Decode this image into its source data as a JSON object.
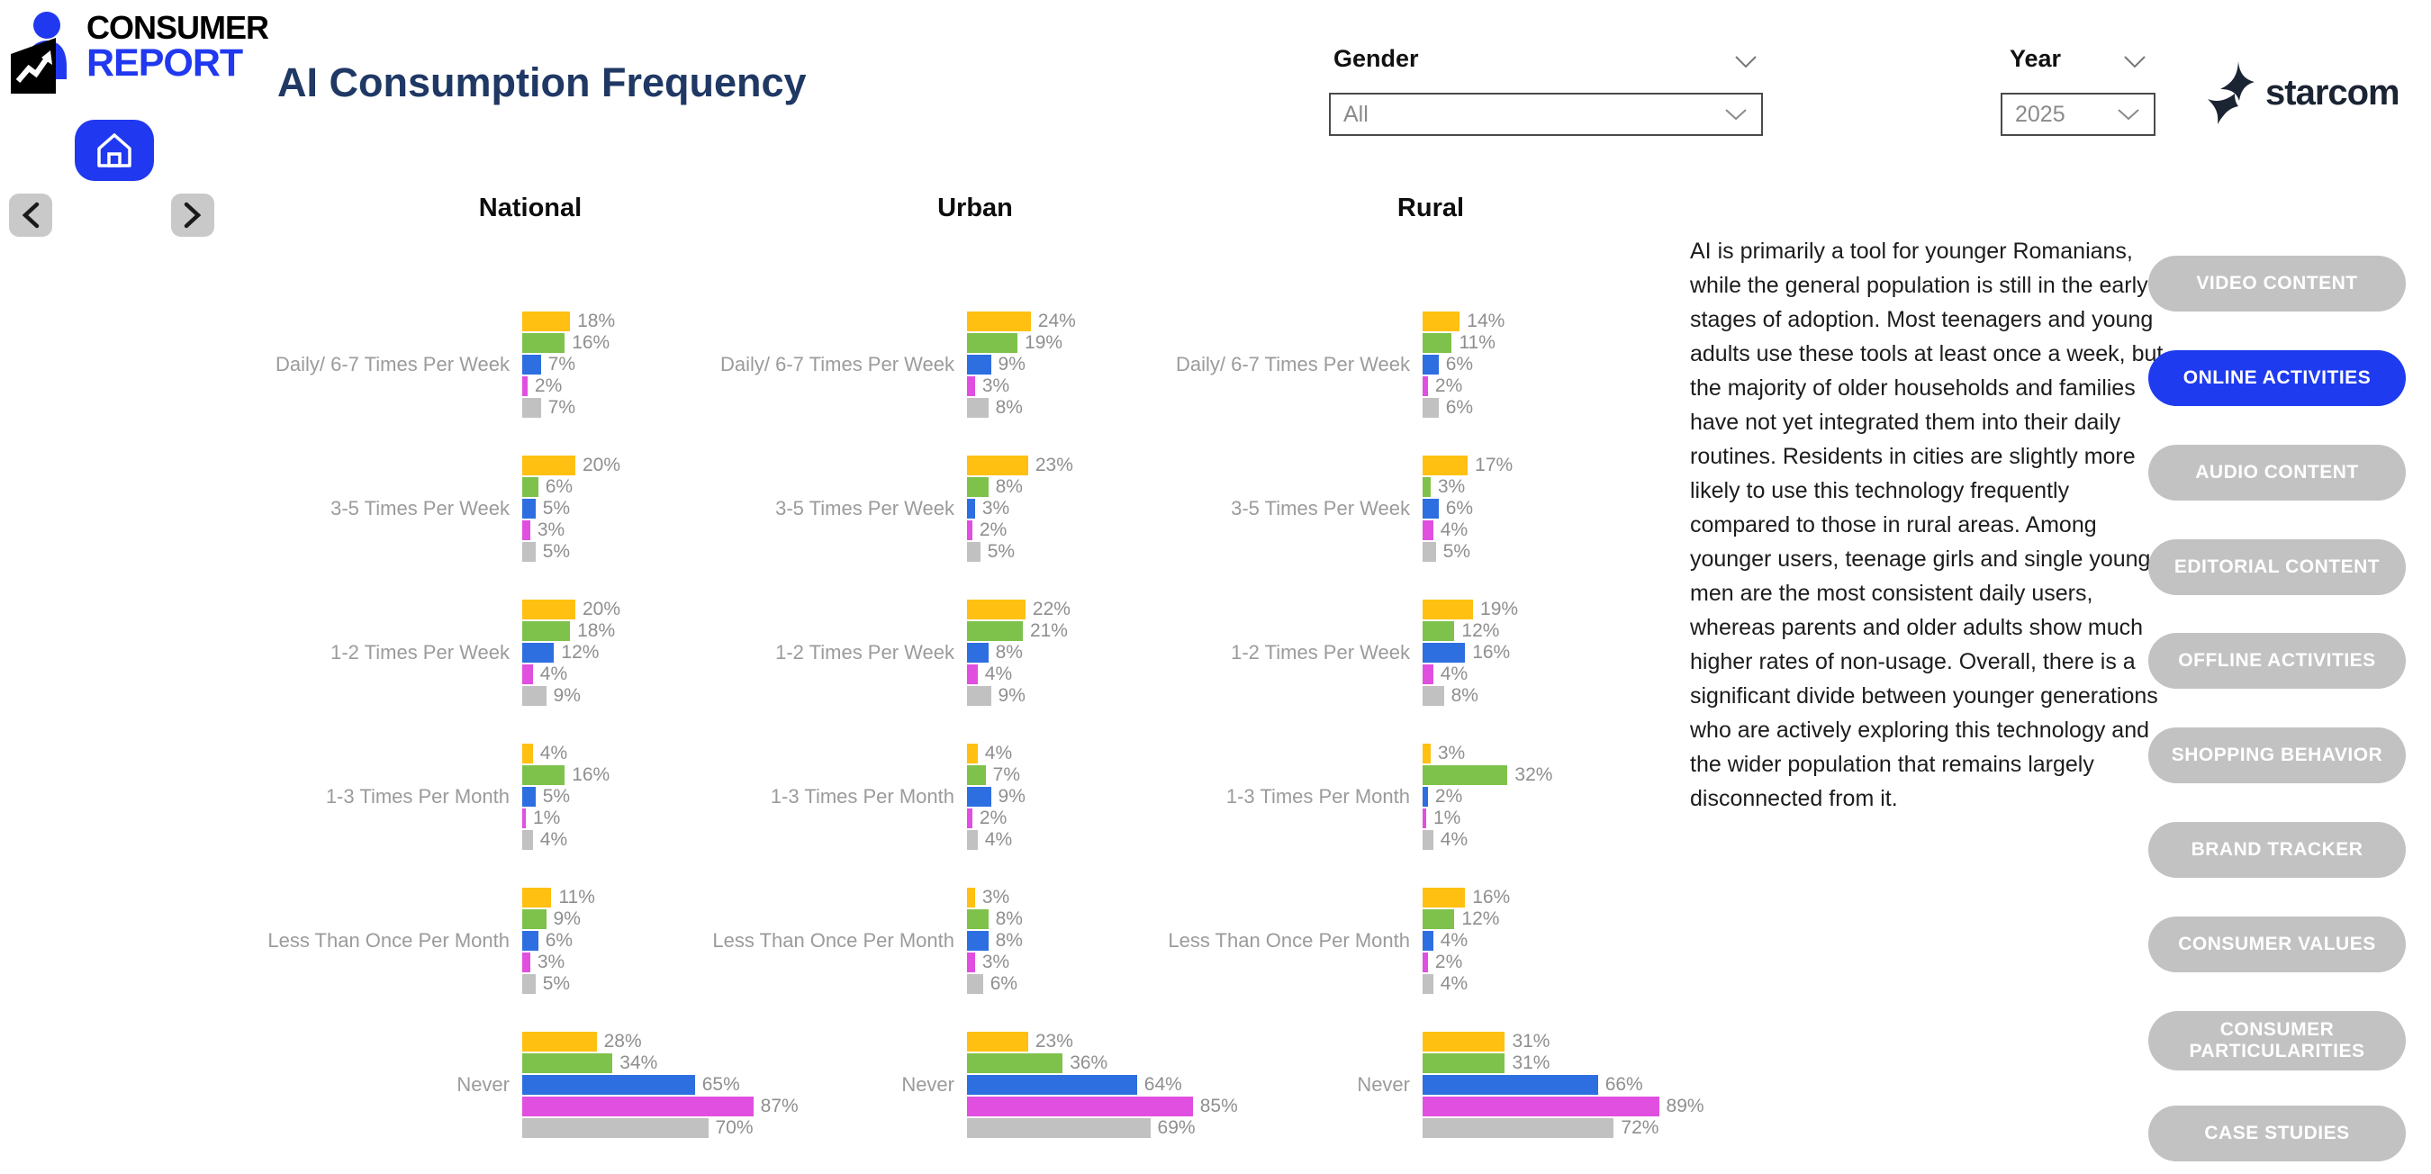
{
  "header": {
    "logo_line1": "CONSUMER",
    "logo_line2": "REPORT",
    "title": "AI Consumption Frequency",
    "filters": {
      "gender": {
        "label": "Gender",
        "value": "All"
      },
      "year": {
        "label": "Year",
        "value": "2025"
      }
    },
    "brand": "starcom"
  },
  "insight_text": "AI is primarily a tool for younger Romanians, while the general population is still in the early stages of adoption. Most teenagers and young adults use these tools at least once a week, but the majority of older households and families have not yet integrated them into their daily routines. Residents in cities are slightly more likely to use this technology frequently compared to those in rural areas. Among younger users, teenage girls and single young men are the most consistent daily users, whereas parents and older adults show much higher rates of non-usage. Overall, there is a significant divide between younger generations who are actively exploring this technology and the wider population that remains largely disconnected from it.",
  "sidebar": {
    "items": [
      {
        "label": "VIDEO CONTENT",
        "active": false
      },
      {
        "label": "ONLINE ACTIVITIES",
        "active": true
      },
      {
        "label": "AUDIO CONTENT",
        "active": false
      },
      {
        "label": "EDITORIAL CONTENT",
        "active": false
      },
      {
        "label": "OFFLINE ACTIVITIES",
        "active": false
      },
      {
        "label": "SHOPPING BEHAVIOR",
        "active": false
      },
      {
        "label": "BRAND TRACKER",
        "active": false
      },
      {
        "label": "CONSUMER VALUES",
        "active": false
      },
      {
        "label": "CONSUMER PARTICULARITIES",
        "active": false
      },
      {
        "label": "CASE STUDIES",
        "active": false
      }
    ]
  },
  "chart_data": {
    "type": "bar",
    "orientation": "horizontal",
    "value_format": "percent",
    "legend_visible": false,
    "categories": [
      "Daily/ 6-7 Times Per Week",
      "3-5 Times Per Week",
      "1-2 Times Per Week",
      "1-3 Times Per Month",
      "Less Than Once Per Month",
      "Never"
    ],
    "series_colors": [
      "#FFC011",
      "#7EC24B",
      "#2D6FE0",
      "#E04FE0",
      "#C1C1C1"
    ],
    "panels": [
      {
        "name": "National",
        "rows": [
          [
            18,
            16,
            7,
            2,
            7
          ],
          [
            20,
            6,
            5,
            3,
            5
          ],
          [
            20,
            18,
            12,
            4,
            9
          ],
          [
            4,
            16,
            5,
            1,
            4
          ],
          [
            11,
            9,
            6,
            3,
            5
          ],
          [
            28,
            34,
            65,
            87,
            70
          ]
        ]
      },
      {
        "name": "Urban",
        "rows": [
          [
            24,
            19,
            9,
            3,
            8
          ],
          [
            23,
            8,
            3,
            2,
            5
          ],
          [
            22,
            21,
            8,
            4,
            9
          ],
          [
            4,
            7,
            9,
            2,
            4
          ],
          [
            3,
            8,
            8,
            3,
            6
          ],
          [
            23,
            36,
            64,
            85,
            69
          ]
        ]
      },
      {
        "name": "Rural",
        "rows": [
          [
            14,
            11,
            6,
            2,
            6
          ],
          [
            17,
            3,
            6,
            4,
            5
          ],
          [
            19,
            12,
            16,
            4,
            8
          ],
          [
            3,
            32,
            2,
            1,
            4
          ],
          [
            16,
            12,
            4,
            2,
            4
          ],
          [
            31,
            31,
            66,
            89,
            72
          ]
        ]
      }
    ]
  }
}
